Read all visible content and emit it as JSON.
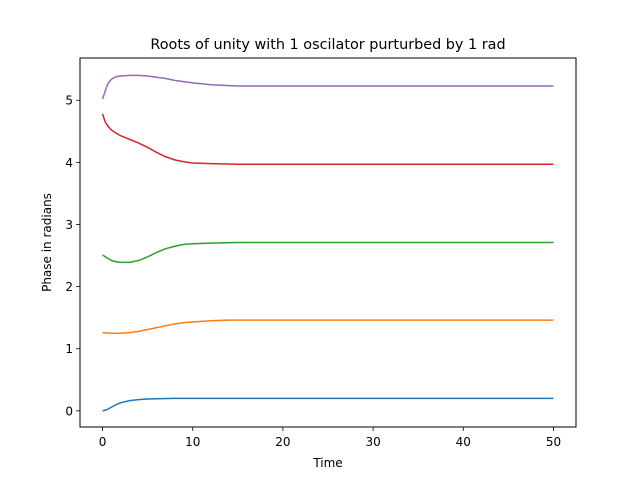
{
  "chart_data": {
    "type": "line",
    "title": "Roots of unity with 1 oscilator purturbed by 1 rad",
    "xlabel": "Time",
    "ylabel": "Phase in radians",
    "xlim": [
      -2.5,
      52.5
    ],
    "ylim": [
      -0.26,
      5.68
    ],
    "xticks": [
      0,
      10,
      20,
      30,
      40,
      50
    ],
    "yticks": [
      0,
      1,
      2,
      3,
      4,
      5
    ],
    "grid": false,
    "series": [
      {
        "color": "#1f77b4",
        "x": [
          0,
          0.5,
          1,
          1.5,
          2,
          3,
          4,
          5,
          6,
          8,
          10,
          15,
          20,
          30,
          40,
          50
        ],
        "y": [
          0.0,
          0.02,
          0.06,
          0.1,
          0.13,
          0.165,
          0.18,
          0.19,
          0.195,
          0.2,
          0.2,
          0.2,
          0.2,
          0.2,
          0.2,
          0.2
        ]
      },
      {
        "color": "#ff7f0e",
        "x": [
          0,
          1,
          2,
          3,
          4,
          5,
          6,
          7,
          8,
          9,
          10,
          12,
          14,
          17,
          20,
          30,
          40,
          50
        ],
        "y": [
          1.26,
          1.25,
          1.25,
          1.26,
          1.28,
          1.31,
          1.34,
          1.37,
          1.4,
          1.42,
          1.43,
          1.45,
          1.46,
          1.46,
          1.46,
          1.46,
          1.46,
          1.46
        ]
      },
      {
        "color": "#2ca02c",
        "x": [
          0,
          0.5,
          1,
          1.5,
          2,
          2.5,
          3,
          4,
          5,
          6,
          7,
          8,
          9,
          10,
          12,
          15,
          20,
          30,
          40,
          50
        ],
        "y": [
          2.51,
          2.46,
          2.42,
          2.4,
          2.39,
          2.39,
          2.39,
          2.42,
          2.48,
          2.55,
          2.61,
          2.65,
          2.68,
          2.69,
          2.7,
          2.71,
          2.71,
          2.71,
          2.71,
          2.71
        ]
      },
      {
        "color": "#d62728",
        "x": [
          0,
          0.3,
          0.6,
          1,
          1.5,
          2,
          3,
          4,
          5,
          6,
          7,
          8,
          9,
          10,
          12,
          15,
          20,
          30,
          40,
          50
        ],
        "y": [
          4.78,
          4.65,
          4.58,
          4.52,
          4.47,
          4.43,
          4.37,
          4.31,
          4.24,
          4.16,
          4.09,
          4.04,
          4.01,
          3.99,
          3.98,
          3.97,
          3.97,
          3.97,
          3.97,
          3.97
        ]
      },
      {
        "color": "#9467bd",
        "x": [
          0,
          0.3,
          0.6,
          1,
          1.5,
          2,
          3,
          4,
          5,
          6,
          7,
          8,
          10,
          12,
          15,
          20,
          30,
          40,
          50
        ],
        "y": [
          5.02,
          5.15,
          5.27,
          5.34,
          5.38,
          5.39,
          5.4,
          5.4,
          5.39,
          5.37,
          5.35,
          5.32,
          5.28,
          5.25,
          5.23,
          5.23,
          5.23,
          5.23,
          5.23
        ]
      }
    ]
  }
}
